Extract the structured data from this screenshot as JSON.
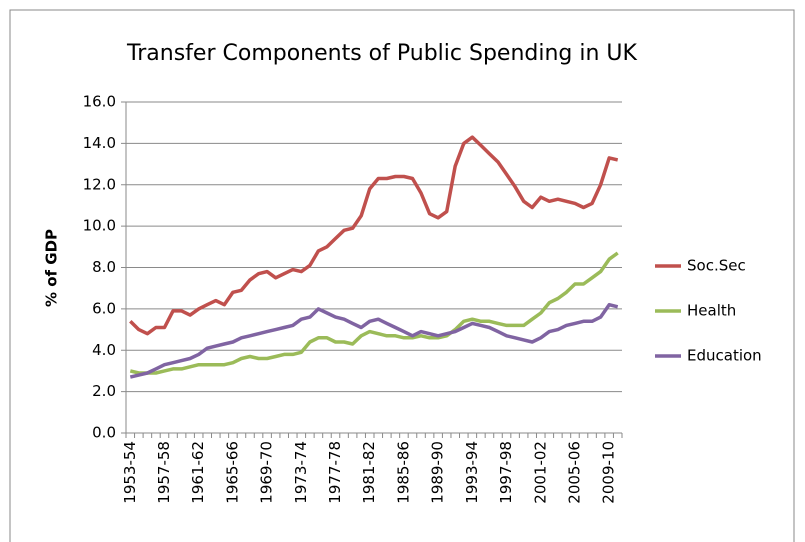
{
  "chart_data": {
    "type": "line",
    "title": "Transfer Components of Public Spending in UK",
    "y_label": "% of GDP",
    "categories": [
      "1953-54",
      null,
      null,
      null,
      "1957-58",
      null,
      null,
      null,
      "1961-62",
      null,
      null,
      null,
      "1965-66",
      null,
      null,
      null,
      "1969-70",
      null,
      null,
      null,
      "1973-74",
      null,
      null,
      null,
      "1977-78",
      null,
      null,
      null,
      "1981-82",
      null,
      null,
      null,
      "1985-86",
      null,
      null,
      null,
      "1989-90",
      null,
      null,
      null,
      "1993-94",
      null,
      null,
      null,
      "1997-98",
      null,
      null,
      null,
      "2001-02",
      null,
      null,
      null,
      "2005-06",
      null,
      null,
      null,
      "2009-10",
      null
    ],
    "series": [
      {
        "name": "Soc.Sec",
        "color": "#c0504d",
        "values": [
          5.4,
          5.0,
          4.8,
          5.1,
          5.1,
          5.9,
          5.9,
          5.7,
          6.0,
          6.2,
          6.4,
          6.2,
          6.8,
          6.9,
          7.4,
          7.7,
          7.8,
          7.5,
          7.7,
          7.9,
          7.8,
          8.1,
          8.8,
          9.0,
          9.4,
          9.8,
          9.9,
          10.5,
          11.8,
          12.3,
          12.3,
          12.4,
          12.4,
          12.3,
          11.6,
          10.6,
          10.4,
          10.7,
          12.9,
          14.0,
          14.3,
          13.9,
          13.5,
          13.1,
          12.5,
          11.9,
          11.2,
          10.9,
          11.4,
          11.2,
          11.3,
          11.2,
          11.1,
          10.9,
          11.1,
          12.0,
          13.3,
          13.2
        ]
      },
      {
        "name": "Health",
        "color": "#9bbb59",
        "values": [
          3.0,
          2.9,
          2.9,
          2.9,
          3.0,
          3.1,
          3.1,
          3.2,
          3.3,
          3.3,
          3.3,
          3.3,
          3.4,
          3.6,
          3.7,
          3.6,
          3.6,
          3.7,
          3.8,
          3.8,
          3.9,
          4.4,
          4.6,
          4.6,
          4.4,
          4.4,
          4.3,
          4.7,
          4.9,
          4.8,
          4.7,
          4.7,
          4.6,
          4.6,
          4.7,
          4.6,
          4.6,
          4.7,
          5.0,
          5.4,
          5.5,
          5.4,
          5.4,
          5.3,
          5.2,
          5.2,
          5.2,
          5.5,
          5.8,
          6.3,
          6.5,
          6.8,
          7.2,
          7.2,
          7.5,
          7.8,
          8.4,
          8.7
        ]
      },
      {
        "name": "Education",
        "color": "#8064a2",
        "values": [
          2.7,
          2.8,
          2.9,
          3.1,
          3.3,
          3.4,
          3.5,
          3.6,
          3.8,
          4.1,
          4.2,
          4.3,
          4.4,
          4.6,
          4.7,
          4.8,
          4.9,
          5.0,
          5.1,
          5.2,
          5.5,
          5.6,
          6.0,
          5.8,
          5.6,
          5.5,
          5.3,
          5.1,
          5.4,
          5.5,
          5.3,
          5.1,
          4.9,
          4.7,
          4.9,
          4.8,
          4.7,
          4.8,
          4.9,
          5.1,
          5.3,
          5.2,
          5.1,
          4.9,
          4.7,
          4.6,
          4.5,
          4.4,
          4.6,
          4.9,
          5.0,
          5.2,
          5.3,
          5.4,
          5.4,
          5.6,
          6.2,
          6.1
        ]
      }
    ],
    "ylim": [
      0,
      16
    ],
    "yticks": [
      {
        "value": 0,
        "label": "0.0"
      },
      {
        "value": 2,
        "label": "2.0"
      },
      {
        "value": 4,
        "label": "4.0"
      },
      {
        "value": 6,
        "label": "6.0"
      },
      {
        "value": 8,
        "label": "8.0"
      },
      {
        "value": 10,
        "label": "10.0"
      },
      {
        "value": 12,
        "label": "12.0"
      },
      {
        "value": 14,
        "label": "14.0"
      },
      {
        "value": 16,
        "label": "16.0"
      }
    ],
    "grid": true,
    "legend": "right"
  }
}
